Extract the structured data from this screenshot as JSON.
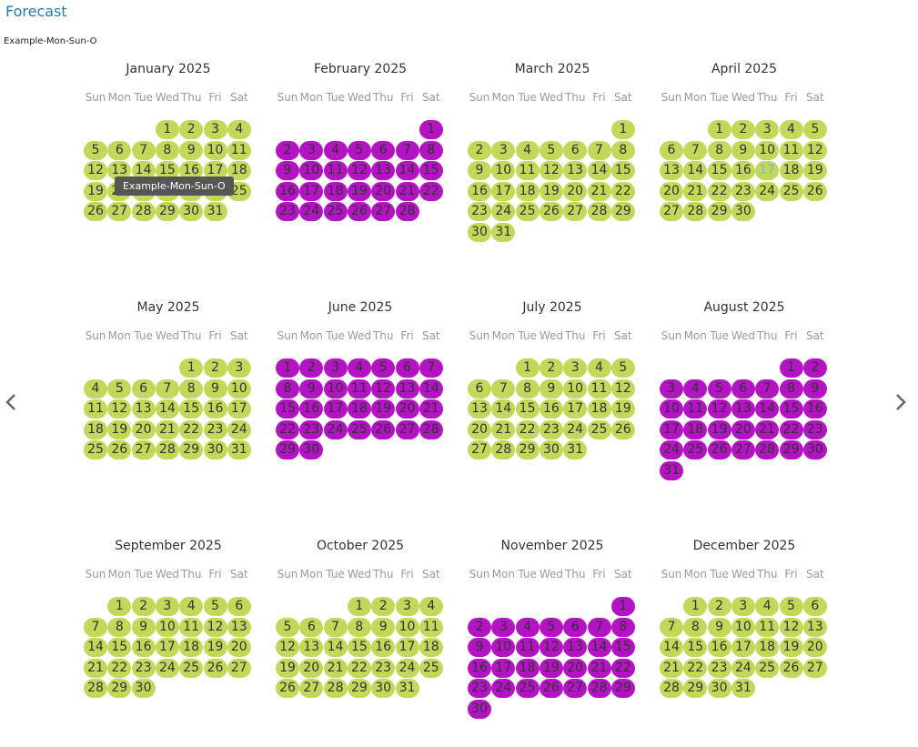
{
  "header": {
    "title": "Forecast",
    "subtitle": "Example-Mon-Sun-O"
  },
  "colors": {
    "available": "#c1d959",
    "booked": "#b313c2",
    "today_text": "#8ab0c9"
  },
  "nav": {
    "prev_icon": "chevron-left-icon",
    "next_icon": "chevron-right-icon"
  },
  "weekdays": [
    "Sun",
    "Mon",
    "Tue",
    "Wed",
    "Thu",
    "Fri",
    "Sat"
  ],
  "tooltip": "Example-Mon-Sun-O",
  "months": [
    {
      "title": "January 2025",
      "first_weekday": 3,
      "days": 31,
      "status": "available"
    },
    {
      "title": "February 2025",
      "first_weekday": 6,
      "days": 28,
      "status": "booked"
    },
    {
      "title": "March 2025",
      "first_weekday": 6,
      "days": 31,
      "status": "available"
    },
    {
      "title": "April 2025",
      "first_weekday": 2,
      "days": 30,
      "status": "available",
      "today": 17
    },
    {
      "title": "May 2025",
      "first_weekday": 4,
      "days": 31,
      "status": "available"
    },
    {
      "title": "June 2025",
      "first_weekday": 0,
      "days": 30,
      "status": "booked"
    },
    {
      "title": "July 2025",
      "first_weekday": 2,
      "days": 31,
      "status": "available"
    },
    {
      "title": "August 2025",
      "first_weekday": 5,
      "days": 31,
      "status": "booked"
    },
    {
      "title": "September 2025",
      "first_weekday": 1,
      "days": 30,
      "status": "available"
    },
    {
      "title": "October 2025",
      "first_weekday": 3,
      "days": 31,
      "status": "available"
    },
    {
      "title": "November 2025",
      "first_weekday": 6,
      "days": 30,
      "status": "booked"
    },
    {
      "title": "December 2025",
      "first_weekday": 1,
      "days": 31,
      "status": "available"
    }
  ]
}
